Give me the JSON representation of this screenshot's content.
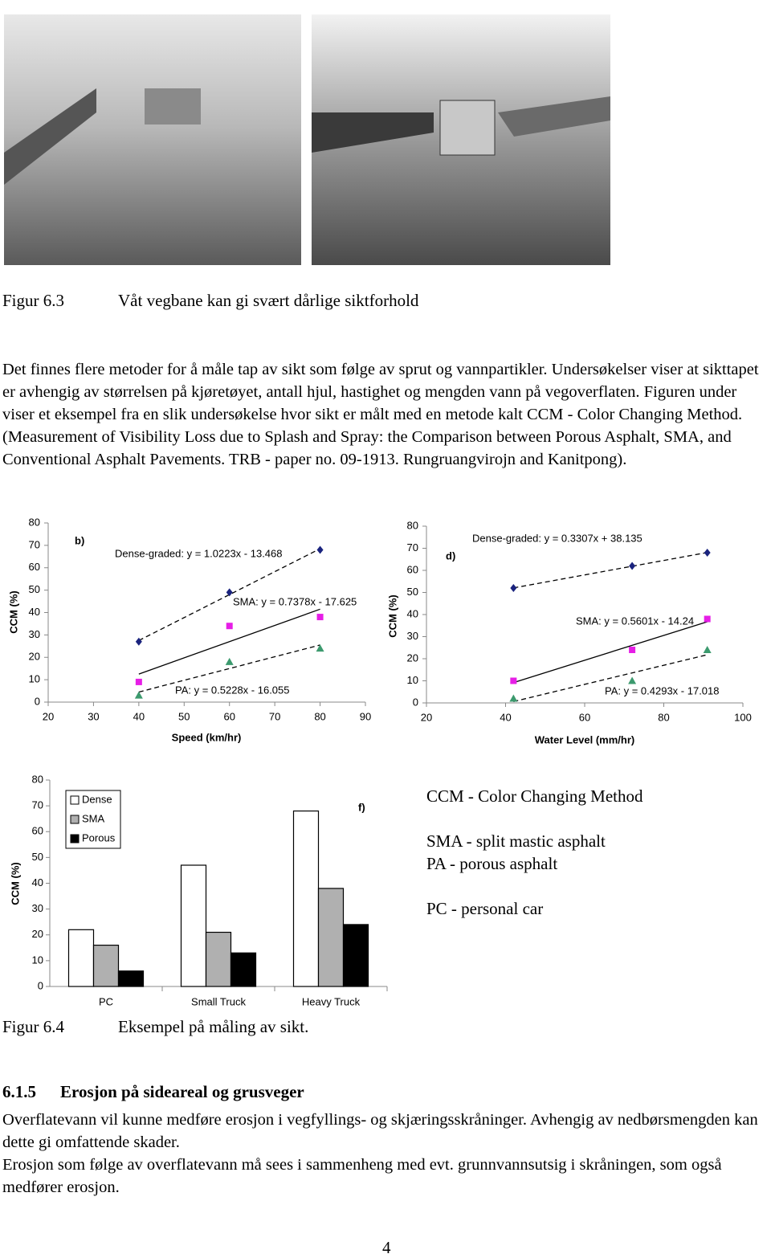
{
  "figure_6_3": {
    "number": "Figur 6.3",
    "caption": "Våt vegbane kan gi svært dårlige siktforhold"
  },
  "paragraph_1": "Det finnes flere metoder for å måle tap av sikt som følge av sprut og vannpartikler. Undersøkelser viser at sikttapet er avhengig av størrelsen på kjøretøyet, antall hjul, hastighet og mengden vann på vegoverflaten. Figuren under viser et eksempel fra en slik undersøkelse hvor sikt er målt med en metode kalt CCM - Color Changing Method. (Measurement of Visibility Loss due to Splash and Spray: the Comparison between Porous Asphalt, SMA, and Conventional Asphalt Pavements. TRB - paper no. 09-1913. Rungruangvirojn and Kanitpong).",
  "chart_data": [
    {
      "type": "scatter",
      "label": "b)",
      "x_label": "Speed (km/hr)",
      "y_label": "CCM (%)",
      "x": [
        40,
        60,
        80
      ],
      "xlim": [
        20,
        90
      ],
      "xticks": [
        20,
        30,
        40,
        50,
        60,
        70,
        80,
        90
      ],
      "ylim": [
        0,
        80
      ],
      "yticks": [
        0,
        10,
        20,
        30,
        40,
        50,
        60,
        70,
        80
      ],
      "series": [
        {
          "annotation": "Dense-graded: y = 1.0223x - 13.468",
          "color": "#1a237e",
          "marker": "diamond",
          "trendline": "dashed",
          "values": [
            27,
            49,
            68
          ]
        },
        {
          "annotation": "SMA: y = 0.7378x - 17.625",
          "color": "#e61ee6",
          "marker": "square",
          "trendline": "solid",
          "values": [
            9,
            34,
            38
          ]
        },
        {
          "annotation": "PA: y = 0.5228x - 16.055",
          "color": "#3c9a6e",
          "marker": "triangle",
          "trendline": "dashed",
          "values": [
            3,
            18,
            24
          ]
        }
      ]
    },
    {
      "type": "scatter",
      "label": "d)",
      "x_label": "Water Level (mm/hr)",
      "y_label": "CCM (%)",
      "x": [
        42,
        72,
        91
      ],
      "xlim": [
        20,
        100
      ],
      "xticks": [
        20,
        40,
        60,
        80,
        100
      ],
      "ylim": [
        0,
        80
      ],
      "yticks": [
        0,
        10,
        20,
        30,
        40,
        50,
        60,
        70,
        80
      ],
      "series": [
        {
          "annotation": "Dense-graded: y = 0.3307x + 38.135",
          "color": "#1a237e",
          "marker": "diamond",
          "trendline": "dashed",
          "values": [
            52,
            62,
            68
          ]
        },
        {
          "annotation": "SMA: y = 0.5601x - 14.24",
          "color": "#e61ee6",
          "marker": "square",
          "trendline": "solid",
          "values": [
            10,
            24,
            38
          ]
        },
        {
          "annotation": "PA: y = 0.4293x - 17.018",
          "color": "#3c9a6e",
          "marker": "triangle",
          "trendline": "dashed",
          "values": [
            2,
            10,
            24
          ]
        }
      ]
    },
    {
      "type": "bar",
      "label": "f)",
      "y_label": "CCM (%)",
      "categories": [
        "PC",
        "Small Truck",
        "Heavy Truck"
      ],
      "ylim": [
        0,
        80
      ],
      "yticks": [
        0,
        10,
        20,
        30,
        40,
        50,
        60,
        70,
        80
      ],
      "series": [
        {
          "name": "Dense",
          "color": "#ffffff",
          "values": [
            22,
            47,
            68
          ]
        },
        {
          "name": "SMA",
          "color": "#b0b0b0",
          "values": [
            16,
            21,
            38
          ]
        },
        {
          "name": "Porous",
          "color": "#000000",
          "values": [
            6,
            13,
            24
          ]
        }
      ]
    }
  ],
  "abbreviations": [
    "CCM - Color Changing Method",
    "SMA - split mastic asphalt",
    "PA - porous asphalt",
    "PC - personal car"
  ],
  "figure_6_4": {
    "number": "Figur 6.4",
    "caption": "Eksempel på måling av sikt."
  },
  "section": {
    "number": "6.1.5",
    "title": "Erosjon på sideareal og grusveger",
    "paragraphs": [
      "Overflatevann vil kunne medføre erosjon i vegfyllings- og skjæringsskråninger. Avhengig av nedbørsmengden kan dette gi omfattende skader.",
      "Erosjon som følge av overflatevann må sees i sammenheng med evt. grunnvannsutsig i skråningen, som også medfører erosjon."
    ]
  },
  "page_number": "4"
}
